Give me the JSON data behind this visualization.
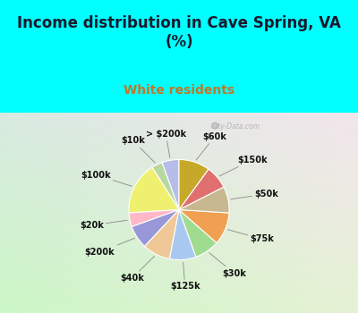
{
  "title": "Income distribution in Cave Spring, VA\n(%)",
  "subtitle": "White residents",
  "bg_color": "#00FFFF",
  "chart_bg_color": "#d8ede0",
  "labels": [
    "> $200k",
    "$10k",
    "$100k",
    "$20k",
    "$200k",
    "$40k",
    "$125k",
    "$30k",
    "$75k",
    "$50k",
    "$150k",
    "$60k"
  ],
  "values": [
    5.5,
    3.5,
    17.0,
    4.5,
    7.5,
    9.0,
    8.5,
    8.0,
    10.5,
    8.5,
    7.5,
    10.0
  ],
  "colors": [
    "#b8bce8",
    "#b8d8a0",
    "#f0f070",
    "#ffb8c8",
    "#9898d8",
    "#f0c898",
    "#a8c8f0",
    "#a0dc90",
    "#f0a050",
    "#c8b890",
    "#e07070",
    "#c8a828"
  ],
  "title_fontsize": 12,
  "subtitle_fontsize": 10,
  "subtitle_color": "#c07828",
  "startangle": 90,
  "figsize": [
    4.0,
    3.5
  ],
  "dpi": 100,
  "watermark": "  City-Data.com"
}
